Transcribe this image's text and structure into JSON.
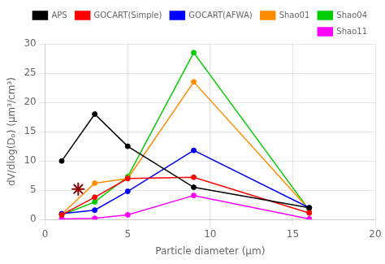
{
  "chart_data": {
    "type": "line",
    "x": [
      1,
      3,
      5,
      9,
      16
    ],
    "series": [
      {
        "name": "APS",
        "color": "#000000",
        "marker": "circle",
        "values": [
          10,
          18,
          12.5,
          5.5,
          2
        ]
      },
      {
        "name": "GOCART(Simple)",
        "color": "#ff0000",
        "marker": "circle",
        "values": [
          0.8,
          3.8,
          7.0,
          7.2,
          1.1
        ]
      },
      {
        "name": "GOCART(AFWA)",
        "color": "#0000ff",
        "marker": "circle",
        "values": [
          1.0,
          1.6,
          4.8,
          11.8,
          2.0
        ]
      },
      {
        "name": "Shao01",
        "color": "#ff8c00",
        "marker": "circle",
        "values": [
          0.9,
          6.2,
          7.0,
          23.5,
          1.7
        ]
      },
      {
        "name": "Shao04",
        "color": "#00cc00",
        "marker": "circle",
        "values": [
          0.8,
          3.0,
          7.3,
          28.5,
          1.6
        ]
      },
      {
        "name": "Shao11",
        "color": "#ff00ff",
        "marker": "circle",
        "values": [
          0.1,
          0.2,
          0.8,
          4.1,
          0.1
        ]
      },
      {
        "color": "#8b0000",
        "marker": "star",
        "line_style": "none",
        "x": [
          2
        ],
        "values": [
          5.2
        ]
      }
    ],
    "xlabel": "Particle diameter (μm)",
    "ylabel": "dV/dlog(Dₚ) (μm³/cm³)",
    "xlim": [
      0,
      20
    ],
    "ylim": [
      0,
      30
    ],
    "xticks": [
      0,
      5,
      10,
      15,
      20
    ],
    "yticks": [
      0,
      5,
      10,
      15,
      20,
      25,
      30
    ],
    "grid": true,
    "legend": "upper right"
  }
}
